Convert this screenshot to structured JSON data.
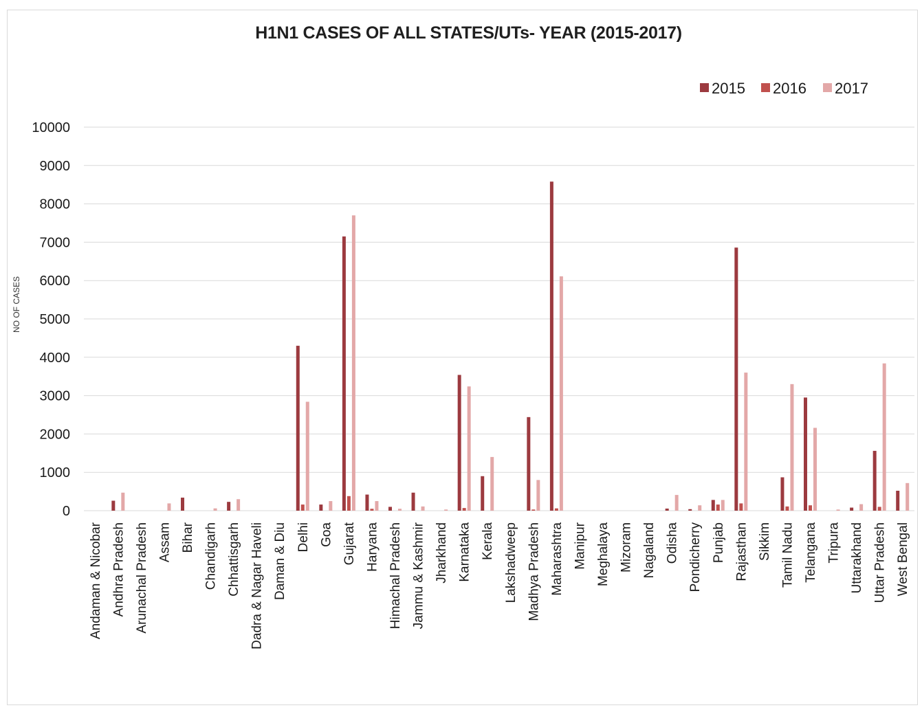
{
  "chart_data": {
    "type": "bar",
    "title": "H1N1 CASES OF ALL STATES/UTs- YEAR (2015-2017)",
    "xlabel": "",
    "ylabel": "NO OF CASES",
    "ylim": [
      0,
      10000
    ],
    "y_ticks": [
      "0",
      "1000",
      "2000",
      "3000",
      "4000",
      "5000",
      "6000",
      "7000",
      "8000",
      "9000",
      "10000"
    ],
    "grid": true,
    "legend_position": "top-right",
    "categories": [
      "Andaman & Nicobar",
      "Andhra Pradesh",
      "Arunachal Pradesh",
      "Assam",
      "Bihar",
      "Chandigarh",
      "Chhattisgarh",
      "Dadra & Nagar Haveli",
      "Daman & Diu",
      "Delhi",
      "Goa",
      "Gujarat",
      "Haryana",
      "Himachal Pradesh",
      "Jammu & Kashmir",
      "Jharkhand",
      "Karnataka",
      "Kerala",
      "Lakshadweep",
      "Madhya Pradesh",
      "Maharashtra",
      "Manipur",
      "Meghalaya",
      "Mizoram",
      "Nagaland",
      "Odisha",
      "Pondicherry",
      "Punjab",
      "Rajasthan",
      "Sikkim",
      "Tamil Nadu",
      "Telangana",
      "Tripura",
      "Uttarakhand",
      "Uttar Pradesh",
      "West Bengal"
    ],
    "series": [
      {
        "name": "2015",
        "color": "#9c3a3f",
        "values": [
          0,
          260,
          0,
          0,
          340,
          0,
          230,
          0,
          0,
          4300,
          160,
          7150,
          420,
          100,
          470,
          0,
          3540,
          900,
          0,
          2440,
          8580,
          0,
          0,
          0,
          0,
          55,
          40,
          280,
          6860,
          0,
          870,
          2950,
          0,
          80,
          1560,
          520
        ]
      },
      {
        "name": "2016",
        "color": "#c0504d",
        "values": [
          0,
          0,
          0,
          0,
          0,
          0,
          0,
          0,
          0,
          160,
          0,
          380,
          50,
          0,
          0,
          0,
          70,
          0,
          0,
          30,
          60,
          0,
          0,
          0,
          0,
          0,
          0,
          160,
          190,
          0,
          110,
          140,
          0,
          0,
          100,
          0
        ]
      },
      {
        "name": "2017",
        "color": "#e3a8a8",
        "values": [
          0,
          470,
          0,
          190,
          0,
          60,
          300,
          0,
          0,
          2840,
          250,
          7700,
          250,
          50,
          110,
          30,
          3240,
          1400,
          0,
          800,
          6110,
          0,
          0,
          0,
          0,
          410,
          140,
          280,
          3600,
          0,
          3300,
          2160,
          30,
          170,
          3840,
          720
        ]
      }
    ]
  }
}
